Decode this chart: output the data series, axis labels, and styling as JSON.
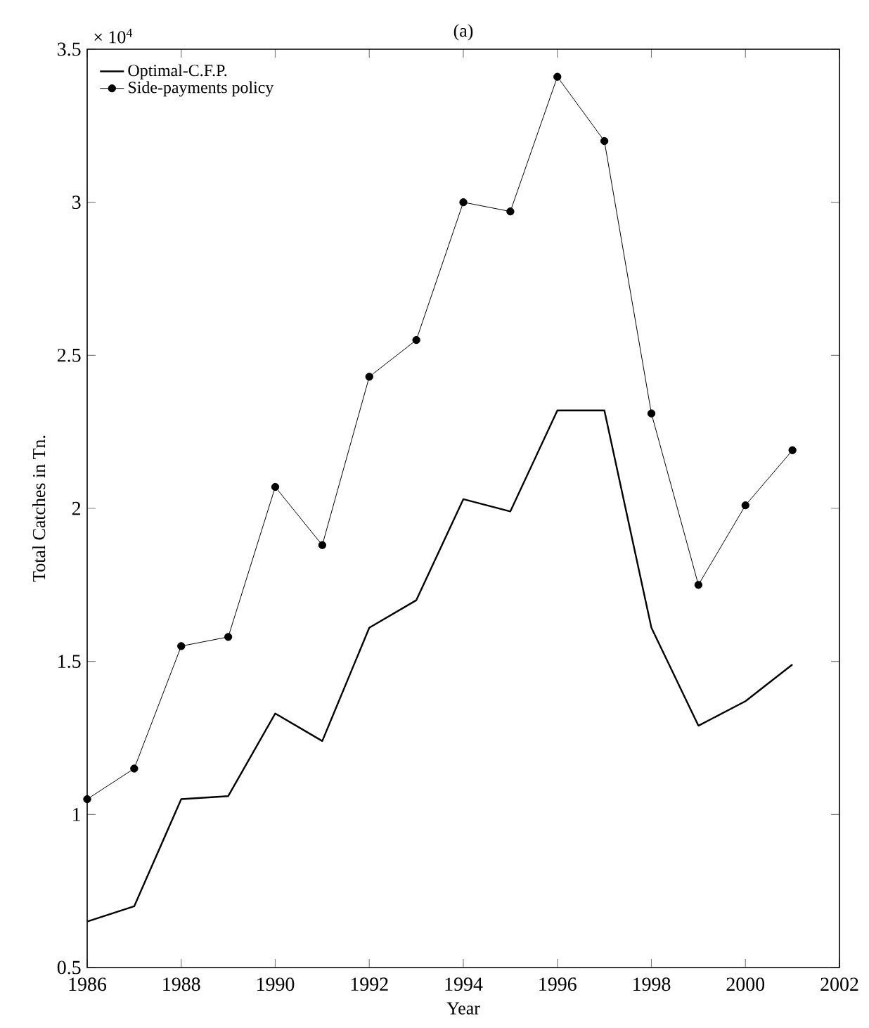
{
  "chart_data": {
    "type": "line",
    "title": "(a)",
    "xlabel": "Year",
    "ylabel": "Total Catches in Tn.",
    "annotations": [
      "× 10$^{4}$"
    ],
    "x": [
      1986,
      1987,
      1988,
      1989,
      1990,
      1991,
      1992,
      1993,
      1994,
      1995,
      1996,
      1997,
      1998,
      1999,
      2000,
      2001
    ],
    "series": [
      {
        "name": "Optimal-C.F.P.",
        "color": "#000000",
        "marker": "none",
        "values": [
          0.65,
          0.7,
          1.05,
          1.06,
          1.33,
          1.24,
          1.61,
          1.7,
          2.03,
          1.99,
          2.32,
          2.32,
          1.61,
          1.29,
          1.37,
          1.49
        ]
      },
      {
        "name": "Side-payments policy",
        "color": "#000000",
        "marker": "circle",
        "values": [
          1.05,
          1.15,
          1.55,
          1.58,
          2.07,
          1.88,
          2.43,
          2.55,
          3.0,
          2.97,
          3.41,
          3.2,
          2.31,
          1.75,
          2.01,
          2.19
        ]
      }
    ],
    "xlim": [
      1986,
      2002
    ],
    "xticks": [
      1986,
      1988,
      1990,
      1992,
      1994,
      1996,
      1998,
      2000,
      2002
    ],
    "ylim": [
      0.5,
      3.5
    ],
    "yticks": [
      0.5,
      1,
      1.5,
      2,
      2.5,
      3,
      3.5
    ],
    "grid": false,
    "legend": "top left"
  }
}
